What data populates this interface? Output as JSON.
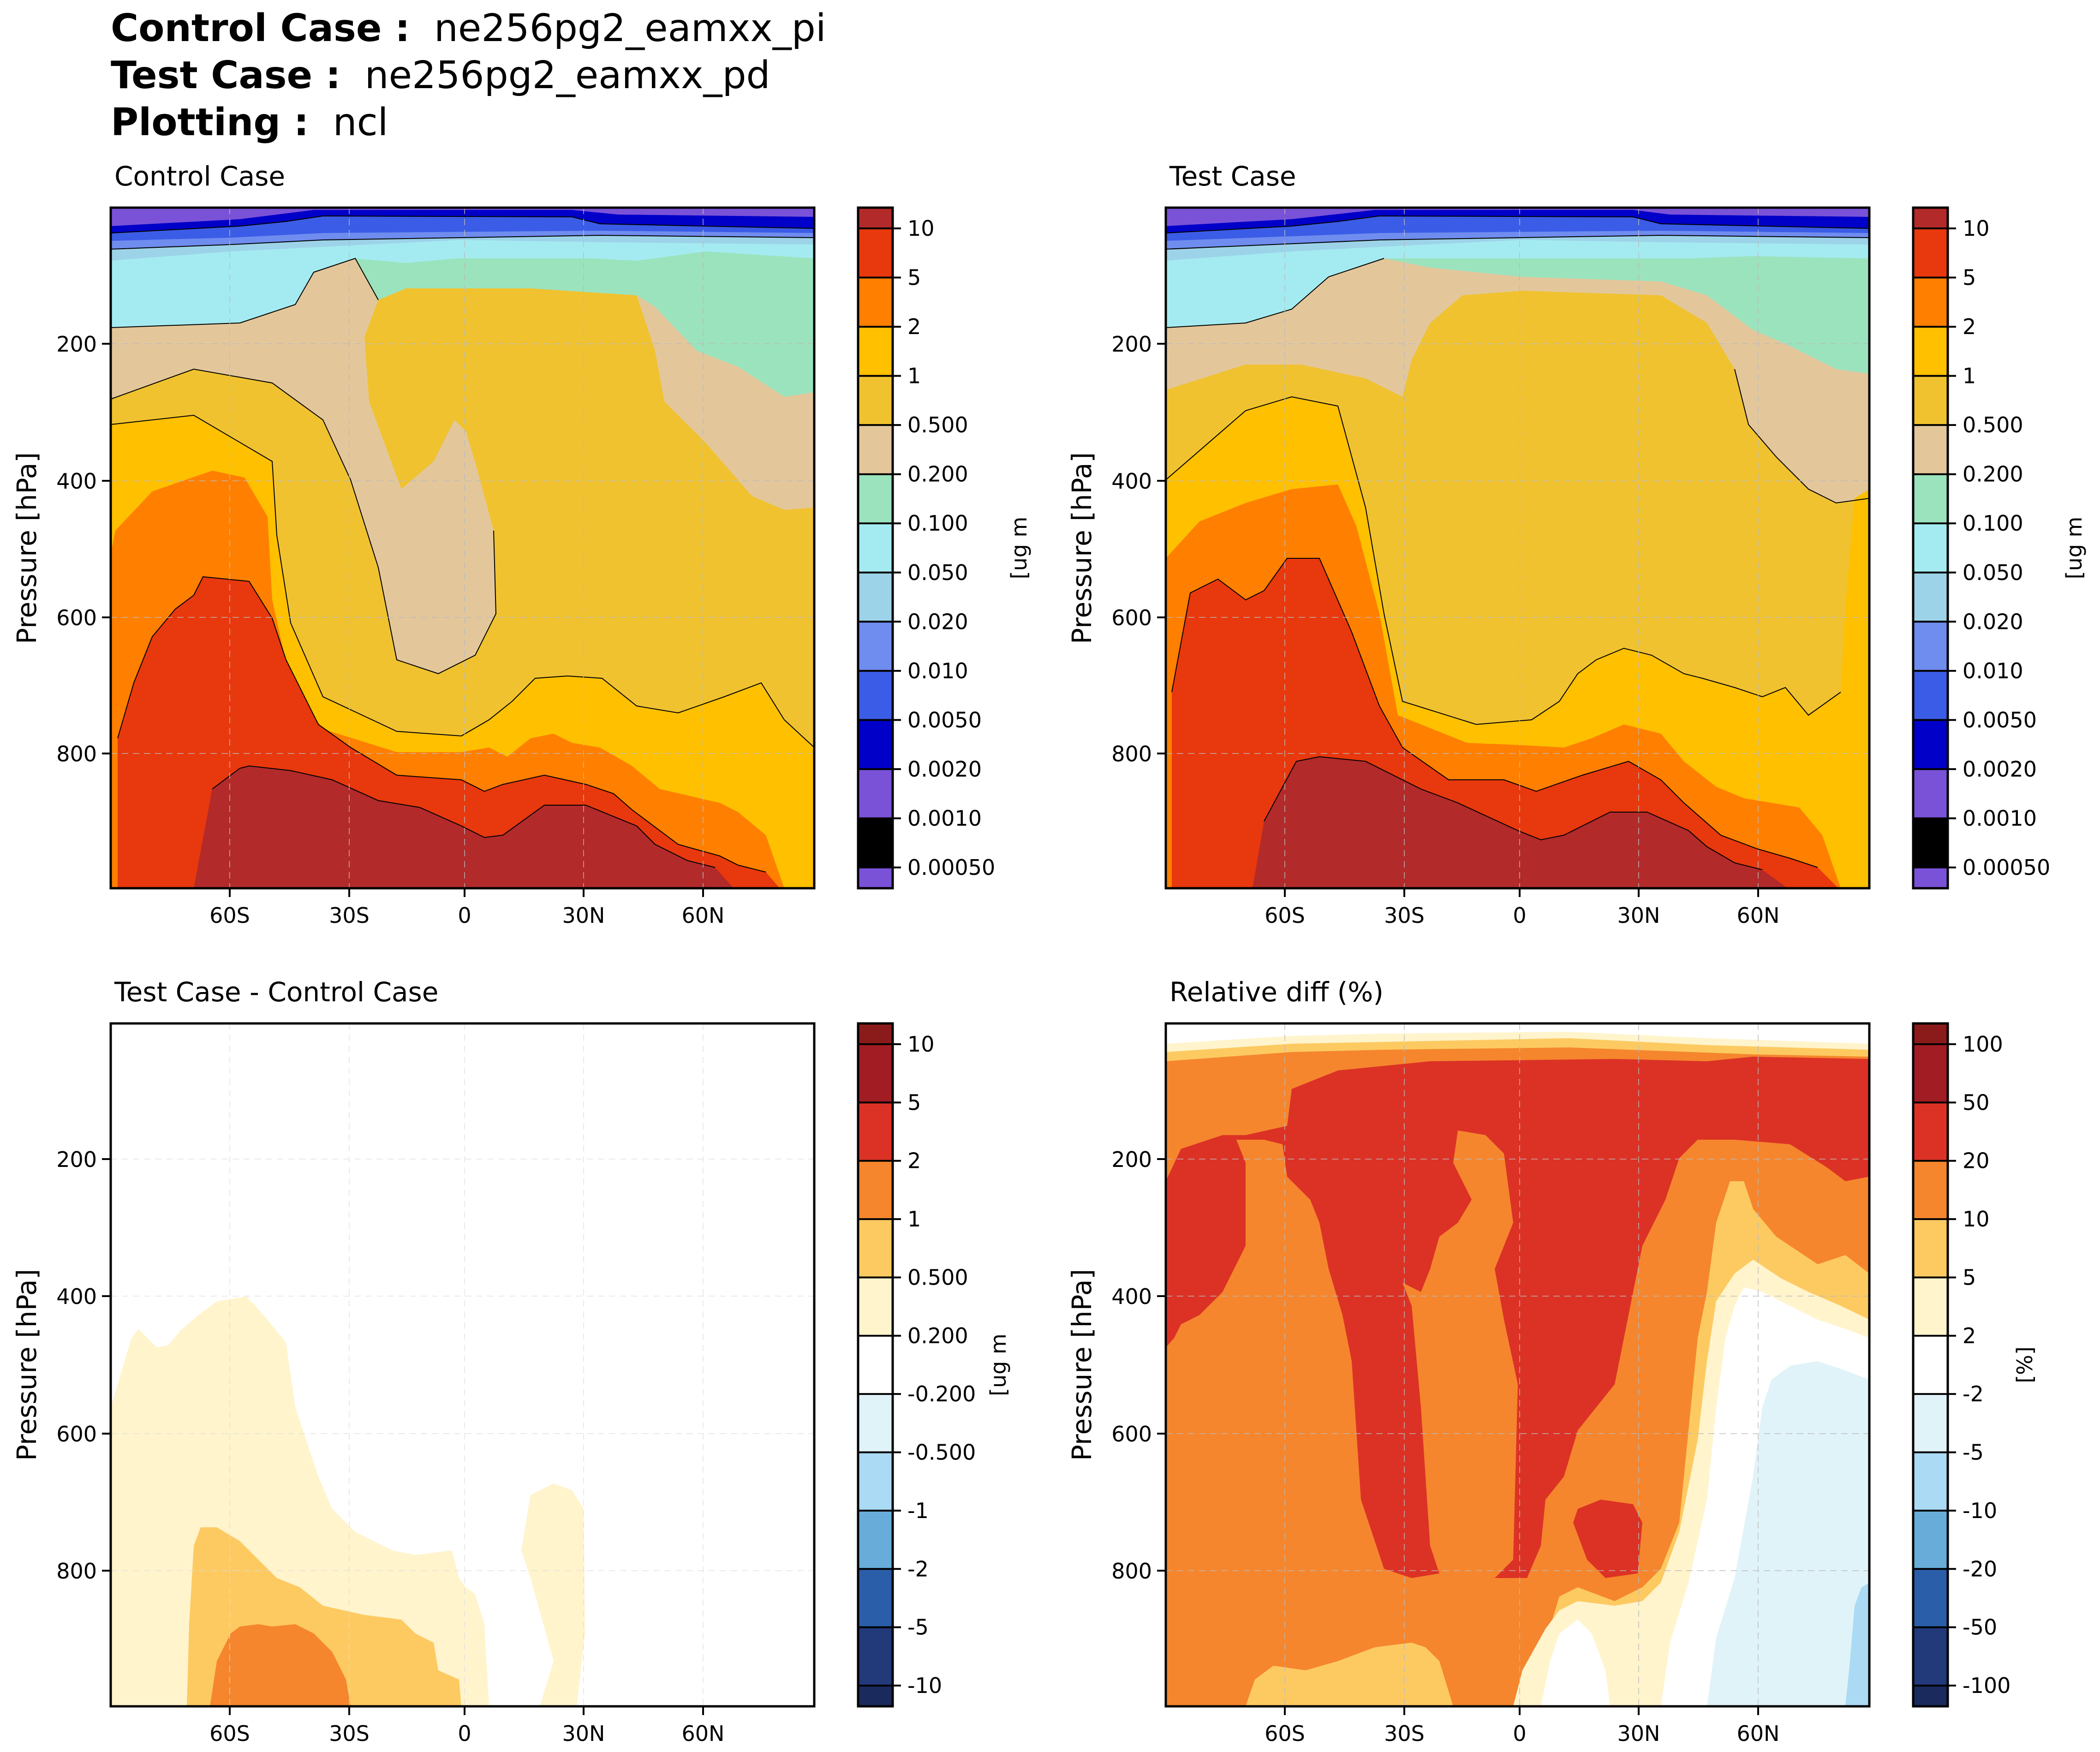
{
  "header": {
    "control_label": "Control Case :",
    "control_value": "ne256pg2_eamxx_pi",
    "test_label": "Test Case :",
    "test_value": "ne256pg2_eamxx_pd",
    "plotting_label": "Plotting :",
    "plotting_value": "ncl"
  },
  "chart_data": [
    {
      "type": "contour",
      "title": "Control Case",
      "ylabel": "Pressure [hPa]",
      "xlabel": "",
      "x_ticks": [
        "60S",
        "30S",
        "0",
        "30N",
        "60N"
      ],
      "x_tick_values": [
        -60,
        -30,
        0,
        30,
        60
      ],
      "xlim": [
        -90,
        87
      ],
      "y_ticks": [
        "200",
        "400",
        "600",
        "800"
      ],
      "y_tick_values": [
        200,
        400,
        600,
        800
      ],
      "ylim": [
        1000,
        0
      ],
      "colorbar_label": "[ug m",
      "colorbar_levels": [
        "10",
        "5",
        "2",
        "1",
        "0.500",
        "0.200",
        "0.100",
        "0.050",
        "0.020",
        "0.010",
        "0.0050",
        "0.0020",
        "0.0010",
        "0.00050"
      ],
      "colorbar_colors": [
        "#b22a2a",
        "#e8380d",
        "#ff7f00",
        "#ffc000",
        "#f0c230",
        "#e3c79b",
        "#9be3bd",
        "#a4ebf1",
        "#9dd3e9",
        "#6f8cef",
        "#3a5ce6",
        "#0000c8",
        "#7a52d8"
      ]
    },
    {
      "type": "contour",
      "title": "Test Case",
      "ylabel": "Pressure [hPa]",
      "xlabel": "",
      "x_ticks": [
        "60S",
        "30S",
        "0",
        "30N",
        "60N"
      ],
      "x_tick_values": [
        -60,
        -30,
        0,
        30,
        60
      ],
      "xlim": [
        -90,
        87
      ],
      "y_ticks": [
        "200",
        "400",
        "600",
        "800"
      ],
      "y_tick_values": [
        200,
        400,
        600,
        800
      ],
      "ylim": [
        1000,
        0
      ],
      "colorbar_label": "[ug m",
      "colorbar_levels": [
        "10",
        "5",
        "2",
        "1",
        "0.500",
        "0.200",
        "0.100",
        "0.050",
        "0.020",
        "0.010",
        "0.0050",
        "0.0020",
        "0.0010",
        "0.00050"
      ],
      "colorbar_colors": [
        "#b22a2a",
        "#e8380d",
        "#ff7f00",
        "#ffc000",
        "#f0c230",
        "#e3c79b",
        "#9be3bd",
        "#a4ebf1",
        "#9dd3e9",
        "#6f8cef",
        "#3a5ce6",
        "#0000c8",
        "#7a52d8"
      ]
    },
    {
      "type": "contour",
      "title": "Test Case - Control Case",
      "ylabel": "Pressure [hPa]",
      "xlabel": "",
      "x_ticks": [
        "60S",
        "30S",
        "0",
        "30N",
        "60N"
      ],
      "x_tick_values": [
        -60,
        -30,
        0,
        30,
        60
      ],
      "xlim": [
        -90,
        87
      ],
      "y_ticks": [
        "200",
        "400",
        "600",
        "800"
      ],
      "y_tick_values": [
        200,
        400,
        600,
        800
      ],
      "ylim": [
        1000,
        0
      ],
      "colorbar_label": "[ug m",
      "colorbar_levels": [
        "10",
        "5",
        "2",
        "1",
        "0.500",
        "0.200",
        "-0.200",
        "-0.500",
        "-1",
        "-2",
        "-5",
        "-10"
      ],
      "colorbar_colors": [
        "#8b1a1a",
        "#a11c23",
        "#dc3226",
        "#f5862d",
        "#fdca62",
        "#fff4cc",
        "#ffffff",
        "#e0f3f8",
        "#abdaf5",
        "#68add9",
        "#2b5ea8",
        "#22397a",
        "#1a2a5c"
      ]
    },
    {
      "type": "contour",
      "title": "Relative diff (%)",
      "ylabel": "Pressure [hPa]",
      "xlabel": "",
      "x_ticks": [
        "60S",
        "30S",
        "0",
        "30N",
        "60N"
      ],
      "x_tick_values": [
        -60,
        -30,
        0,
        30,
        60
      ],
      "xlim": [
        -90,
        87
      ],
      "y_ticks": [
        "200",
        "400",
        "600",
        "800"
      ],
      "y_tick_values": [
        200,
        400,
        600,
        800
      ],
      "ylim": [
        1000,
        0
      ],
      "colorbar_label": "[%]",
      "colorbar_levels": [
        "100",
        "50",
        "20",
        "10",
        "5",
        "2",
        "-2",
        "-5",
        "-10",
        "-20",
        "-50",
        "-100"
      ],
      "colorbar_colors": [
        "#8b1a1a",
        "#a11c23",
        "#dc3226",
        "#f5862d",
        "#fdca62",
        "#fff4cc",
        "#ffffff",
        "#e0f3f8",
        "#abdaf5",
        "#68add9",
        "#2b5ea8",
        "#22397a",
        "#1a2a5c"
      ]
    }
  ]
}
